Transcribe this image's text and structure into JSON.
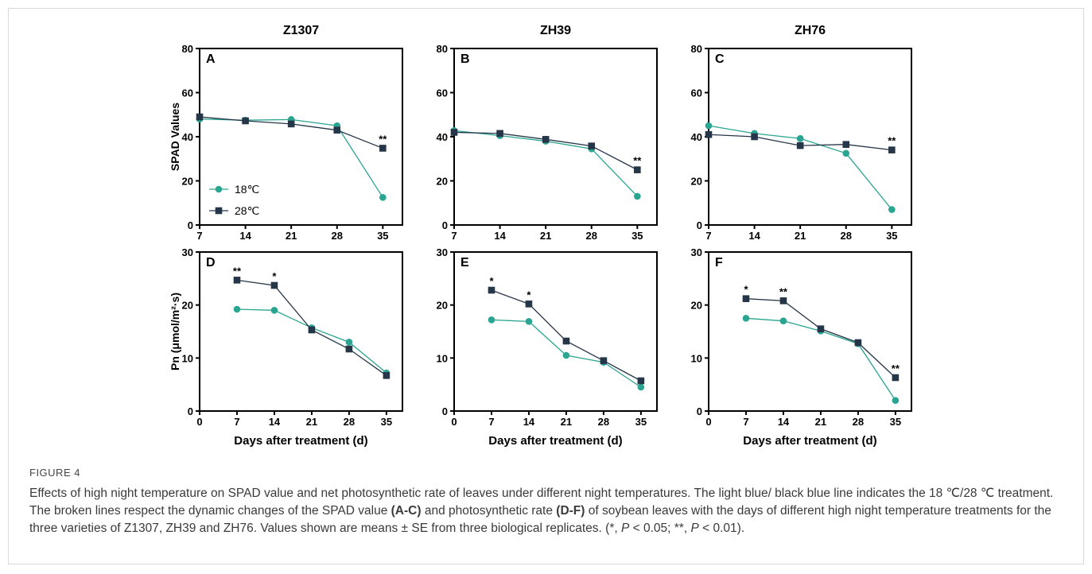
{
  "caption": {
    "label": "FIGURE 4",
    "p1": "Effects of high night temperature on SPAD value and net photosynthetic rate of leaves under different night temperatures. The light blue/ black blue line indicates the 18 ℃/28 ℃ treatment. The broken lines respect the dynamic changes of the SPAD value ",
    "b1": "(A-C)",
    "p2": " and photosynthetic rate ",
    "b2": "(D-F)",
    "p3": " of soybean leaves with the days of different high night temperature treatments for the three varieties of Z1307, ZH39 and ZH76. Values shown are means ± SE from three biological replicates. (*, ",
    "i1": "P",
    "p4": " < 0.05; **, ",
    "i2": "P",
    "p5": " < 0.01)."
  },
  "colors": {
    "t18": "#2aa591",
    "t28": "#253649"
  },
  "chart_data": [
    {
      "type": "line",
      "panel": "A",
      "column_title": "Z1307",
      "ylabel": "SPAD Values",
      "xlabel": "",
      "x": [
        7,
        14,
        21,
        28,
        35
      ],
      "xticks": [
        7,
        14,
        21,
        28,
        35
      ],
      "xlim": [
        7,
        38
      ],
      "ylim": [
        0,
        80
      ],
      "yticks": [
        0,
        20,
        40,
        60,
        80
      ],
      "legend": "left",
      "legend_entries": [
        "18℃",
        "28℃"
      ],
      "series": [
        {
          "name": "18℃",
          "values": [
            48,
            47.5,
            47.8,
            45,
            12.5
          ]
        },
        {
          "name": "28℃",
          "values": [
            49,
            47.2,
            45.8,
            43,
            34.8
          ]
        }
      ],
      "annotations": [
        {
          "x": 35,
          "text": "**"
        }
      ]
    },
    {
      "type": "line",
      "panel": "B",
      "column_title": "ZH39",
      "ylabel": "",
      "xlabel": "",
      "x": [
        7,
        14,
        21,
        28,
        35
      ],
      "xticks": [
        7,
        14,
        21,
        28,
        35
      ],
      "xlim": [
        7,
        38
      ],
      "ylim": [
        0,
        80
      ],
      "yticks": [
        0,
        20,
        40,
        60,
        80
      ],
      "series": [
        {
          "name": "18℃",
          "values": [
            42.8,
            40.5,
            38,
            34.5,
            13
          ]
        },
        {
          "name": "28℃",
          "values": [
            42,
            41.5,
            38.8,
            35.8,
            25
          ]
        }
      ],
      "annotations": [
        {
          "x": 35,
          "text": "**"
        }
      ]
    },
    {
      "type": "line",
      "panel": "C",
      "column_title": "ZH76",
      "ylabel": "",
      "xlabel": "",
      "x": [
        7,
        14,
        21,
        28,
        35
      ],
      "xticks": [
        7,
        14,
        21,
        28,
        35
      ],
      "xlim": [
        7,
        38
      ],
      "ylim": [
        0,
        80
      ],
      "yticks": [
        0,
        20,
        40,
        60,
        80
      ],
      "series": [
        {
          "name": "18℃",
          "values": [
            45,
            41.5,
            39.2,
            32.5,
            7
          ]
        },
        {
          "name": "28℃",
          "values": [
            41,
            40,
            36,
            36.5,
            34
          ]
        }
      ],
      "annotations": [
        {
          "x": 35,
          "text": "**"
        }
      ]
    },
    {
      "type": "line",
      "panel": "D",
      "ylabel": "Pn (μmol/m²·s)",
      "xlabel": "Days after treatment (d)",
      "x": [
        7,
        14,
        21,
        28,
        35
      ],
      "xticks": [
        0,
        7,
        14,
        21,
        28,
        35
      ],
      "xlim": [
        0,
        38
      ],
      "ylim": [
        0,
        30
      ],
      "yticks": [
        0,
        10,
        20,
        30
      ],
      "series": [
        {
          "name": "18℃",
          "values": [
            19.2,
            19,
            15.7,
            13,
            7.2
          ]
        },
        {
          "name": "28℃",
          "values": [
            24.7,
            23.7,
            15.3,
            11.7,
            6.7
          ]
        }
      ],
      "annotations": [
        {
          "x": 7,
          "text": "**"
        },
        {
          "x": 14,
          "text": "*"
        }
      ]
    },
    {
      "type": "line",
      "panel": "E",
      "ylabel": "",
      "xlabel": "Days after treatment (d)",
      "x": [
        7,
        14,
        21,
        28,
        35
      ],
      "xticks": [
        0,
        7,
        14,
        21,
        28,
        35
      ],
      "xlim": [
        0,
        38
      ],
      "ylim": [
        0,
        30
      ],
      "yticks": [
        0,
        10,
        20,
        30
      ],
      "series": [
        {
          "name": "18℃",
          "values": [
            17.2,
            16.9,
            10.5,
            9.2,
            4.5
          ]
        },
        {
          "name": "28℃",
          "values": [
            22.8,
            20.2,
            13.2,
            9.5,
            5.7
          ]
        }
      ],
      "annotations": [
        {
          "x": 7,
          "text": "*"
        },
        {
          "x": 14,
          "text": "*"
        }
      ]
    },
    {
      "type": "line",
      "panel": "F",
      "ylabel": "",
      "xlabel": "Days after treatment (d)",
      "x": [
        7,
        14,
        21,
        28,
        35
      ],
      "xticks": [
        0,
        7,
        14,
        21,
        28,
        35
      ],
      "xlim": [
        0,
        38
      ],
      "ylim": [
        0,
        30
      ],
      "yticks": [
        0,
        10,
        20,
        30
      ],
      "series": [
        {
          "name": "18℃",
          "values": [
            17.5,
            17,
            15.1,
            12.7,
            2
          ]
        },
        {
          "name": "28℃",
          "values": [
            21.2,
            20.8,
            15.5,
            12.9,
            6.3
          ]
        }
      ],
      "annotations": [
        {
          "x": 7,
          "text": "*"
        },
        {
          "x": 14,
          "text": "**"
        },
        {
          "x": 35,
          "text": "**"
        }
      ]
    }
  ]
}
